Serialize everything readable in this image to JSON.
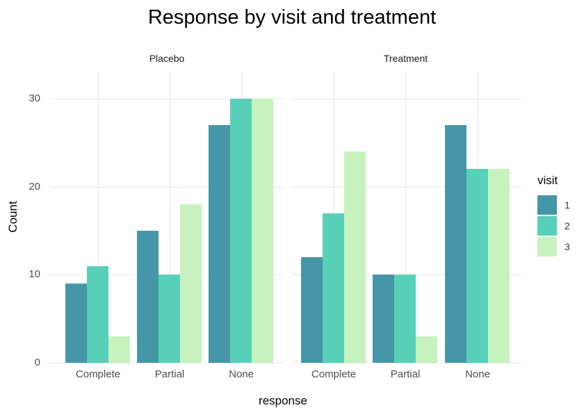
{
  "chart_data": {
    "type": "bar",
    "title": "Response by visit and treatment",
    "xlabel": "response",
    "ylabel": "Count",
    "ylim": [
      0,
      33
    ],
    "y_ticks": [
      0,
      10,
      20,
      30
    ],
    "grid": true,
    "legend_title": "visit",
    "legend_position": "right",
    "categories": [
      "Complete",
      "Partial",
      "None"
    ],
    "facets": [
      {
        "label": "Placebo",
        "series": [
          {
            "name": "1",
            "color": "#4597a8",
            "values": [
              9,
              15,
              27
            ]
          },
          {
            "name": "2",
            "color": "#58d0b8",
            "values": [
              11,
              10,
              30
            ]
          },
          {
            "name": "3",
            "color": "#c7f2be",
            "values": [
              3,
              18,
              30
            ]
          }
        ]
      },
      {
        "label": "Treatment",
        "series": [
          {
            "name": "1",
            "color": "#4597a8",
            "values": [
              12,
              10,
              27
            ]
          },
          {
            "name": "2",
            "color": "#58d0b8",
            "values": [
              17,
              10,
              22
            ]
          },
          {
            "name": "3",
            "color": "#c7f2be",
            "values": [
              24,
              3,
              22
            ]
          }
        ]
      }
    ],
    "colors": {
      "visit_1": "#4597a8",
      "visit_2": "#58d0b8",
      "visit_3": "#c7f2be",
      "gridline": "#e7e7e7",
      "tick_label": "#4d4d4d",
      "background": "#ffffff"
    }
  }
}
